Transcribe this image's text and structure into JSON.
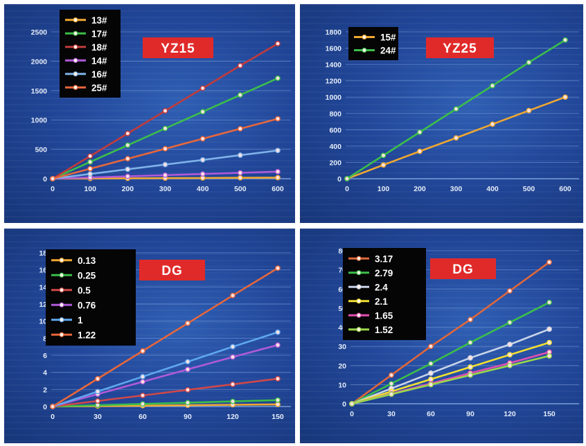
{
  "colors": {
    "bg_outer": "#ffffff",
    "panel_dark": "#173679",
    "panel_light": "#2f5fb3",
    "grid": "#8fb2e6",
    "title_box": "#e02a2a",
    "legend_box": "#050505"
  },
  "chart_data": [
    {
      "type": "line",
      "title": "YZ15",
      "xlabel": "",
      "ylabel": "",
      "x": [
        0,
        100,
        200,
        300,
        400,
        500,
        600
      ],
      "xlim": [
        0,
        600
      ],
      "ylim": [
        0,
        2500
      ],
      "xticks": [
        0,
        100,
        200,
        300,
        400,
        500,
        600
      ],
      "yticks": [
        0,
        500,
        1000,
        1500,
        2000,
        2500
      ],
      "grid": true,
      "legend_position": "top-left",
      "series": [
        {
          "name": "13#",
          "color": "#f0a830",
          "values": [
            0,
            3,
            6,
            9,
            12,
            15,
            18
          ]
        },
        {
          "name": "17#",
          "color": "#3cbf4a",
          "values": [
            0,
            285,
            570,
            855,
            1140,
            1425,
            1710
          ]
        },
        {
          "name": "18#",
          "color": "#c23b3b",
          "values": [
            0,
            385,
            770,
            1155,
            1540,
            1925,
            2300
          ]
        },
        {
          "name": "14#",
          "color": "#b05ad8",
          "values": [
            0,
            20,
            40,
            60,
            80,
            100,
            120
          ]
        },
        {
          "name": "16#",
          "color": "#7fb2e8",
          "values": [
            0,
            80,
            160,
            240,
            320,
            400,
            480
          ]
        },
        {
          "name": "25#",
          "color": "#e8673a",
          "values": [
            0,
            170,
            340,
            510,
            680,
            850,
            1020
          ]
        }
      ]
    },
    {
      "type": "line",
      "title": "YZ25",
      "xlabel": "",
      "ylabel": "",
      "x": [
        0,
        100,
        200,
        300,
        400,
        500,
        600
      ],
      "xlim": [
        0,
        600
      ],
      "ylim": [
        0,
        1800
      ],
      "xticks": [
        0,
        100,
        200,
        300,
        400,
        500,
        600
      ],
      "yticks": [
        0,
        200,
        400,
        600,
        800,
        1000,
        1200,
        1400,
        1600,
        1800
      ],
      "grid": true,
      "legend_position": "top-left",
      "series": [
        {
          "name": "15#",
          "color": "#f0a830",
          "values": [
            0,
            168,
            335,
            500,
            668,
            835,
            1000
          ]
        },
        {
          "name": "24#",
          "color": "#3cbf4a",
          "values": [
            0,
            285,
            570,
            855,
            1140,
            1425,
            1700
          ]
        }
      ]
    },
    {
      "type": "line",
      "title": "DG",
      "xlabel": "",
      "ylabel": "",
      "x": [
        0,
        30,
        60,
        90,
        120,
        150
      ],
      "xlim": [
        0,
        150
      ],
      "ylim": [
        0,
        18
      ],
      "xticks": [
        0,
        30,
        60,
        90,
        120,
        150
      ],
      "yticks": [
        0,
        2,
        4,
        6,
        8,
        10,
        12,
        14,
        16,
        18
      ],
      "grid": true,
      "legend_position": "top-left",
      "series": [
        {
          "name": "0.13",
          "color": "#f0a830",
          "values": [
            0,
            0.05,
            0.1,
            0.15,
            0.2,
            0.25
          ]
        },
        {
          "name": "0.25",
          "color": "#3cbf4a",
          "values": [
            0,
            0.15,
            0.3,
            0.45,
            0.6,
            0.75
          ]
        },
        {
          "name": "0.5",
          "color": "#d04848",
          "values": [
            0,
            0.65,
            1.3,
            1.95,
            2.6,
            3.25
          ]
        },
        {
          "name": "0.76",
          "color": "#b05ad8",
          "values": [
            0,
            1.45,
            2.9,
            4.35,
            5.8,
            7.2
          ]
        },
        {
          "name": "1",
          "color": "#5fa8ef",
          "values": [
            0,
            1.75,
            3.5,
            5.25,
            7.0,
            8.7
          ]
        },
        {
          "name": "1.22",
          "color": "#e8673a",
          "values": [
            0,
            3.25,
            6.5,
            9.75,
            13.0,
            16.2
          ]
        }
      ]
    },
    {
      "type": "line",
      "title": "DG",
      "xlabel": "",
      "ylabel": "",
      "x": [
        0,
        30,
        60,
        90,
        120,
        150
      ],
      "xlim": [
        0,
        150
      ],
      "ylim": [
        0,
        80
      ],
      "xticks": [
        0,
        30,
        60,
        90,
        120,
        150
      ],
      "yticks": [
        0,
        10,
        20,
        30,
        40,
        50,
        60,
        70,
        80
      ],
      "grid": true,
      "legend_position": "top-left",
      "series": [
        {
          "name": "3.17",
          "color": "#e0673a",
          "values": [
            0,
            15,
            30,
            44,
            59,
            74
          ]
        },
        {
          "name": "2.79",
          "color": "#3cbf4a",
          "values": [
            0,
            10.5,
            21,
            32,
            42.5,
            53
          ]
        },
        {
          "name": "2.4",
          "color": "#c8d4e8",
          "values": [
            0,
            8,
            16,
            24,
            31,
            39
          ]
        },
        {
          "name": "2.1",
          "color": "#f2e030",
          "values": [
            0,
            6.4,
            12.8,
            19.2,
            25.6,
            32
          ]
        },
        {
          "name": "1.65",
          "color": "#e04fb0",
          "values": [
            0,
            5.3,
            10.6,
            16,
            21.3,
            27
          ]
        },
        {
          "name": "1.52",
          "color": "#9ad84a",
          "values": [
            0,
            5,
            10,
            15,
            20,
            25
          ]
        }
      ]
    }
  ]
}
